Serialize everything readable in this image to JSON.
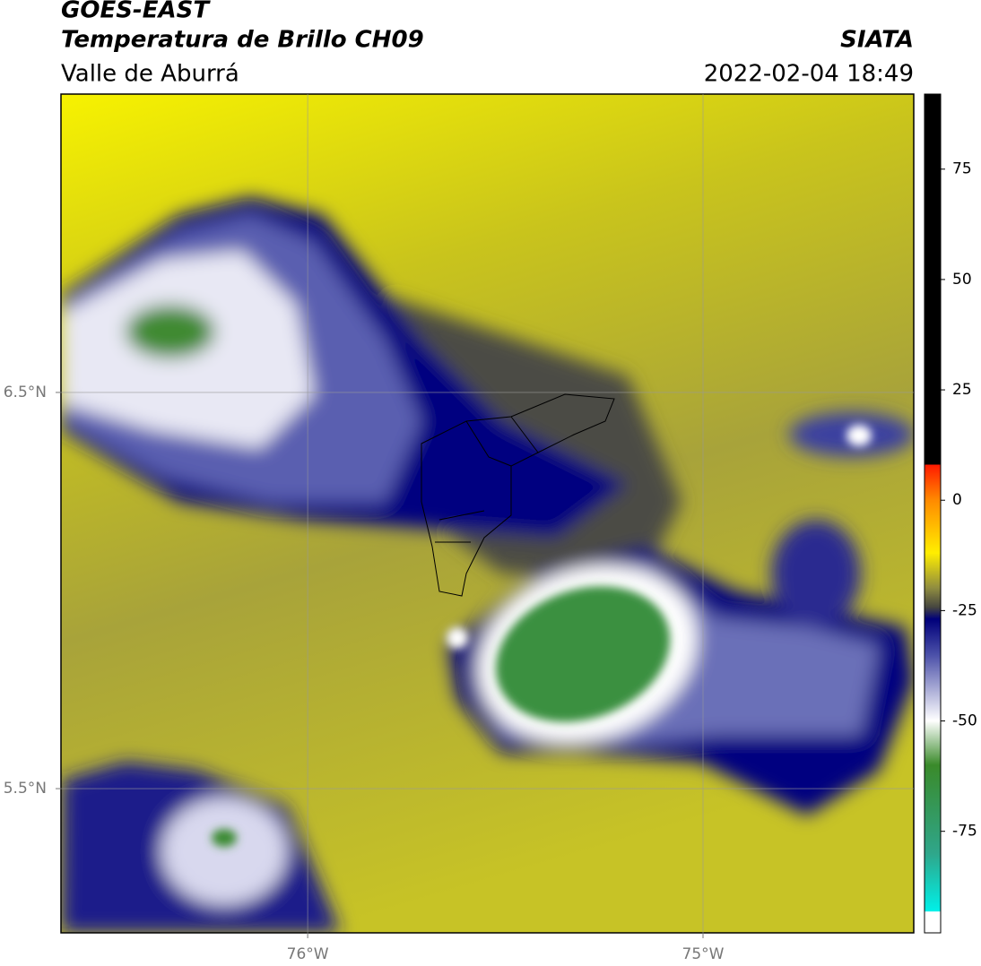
{
  "header": {
    "title": "GOES-EAST",
    "subtitle": "Temperatura de Brillo CH09",
    "region": "Valle de Aburrá",
    "source": "SIATA",
    "datetime": "2022-02-04 18:49"
  },
  "map": {
    "xlim": [
      -76.624,
      -74.467
    ],
    "ylim": [
      5.136,
      7.253
    ],
    "xticks": [
      {
        "value": -76,
        "label": "76°W"
      },
      {
        "value": -75,
        "label": "75°W"
      }
    ],
    "yticks": [
      {
        "value": 6.5,
        "label": "6.5°N"
      },
      {
        "value": 5.5,
        "label": "5.5°N"
      }
    ],
    "grid": true
  },
  "colorbar": {
    "lim": [
      -98,
      92
    ],
    "ticks": [
      -75,
      -50,
      -25,
      0,
      25,
      50,
      75
    ]
  }
}
